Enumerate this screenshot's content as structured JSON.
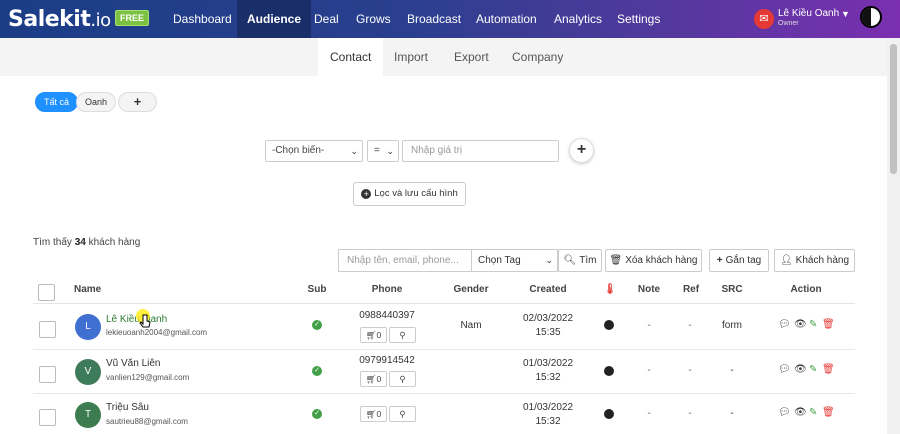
{
  "app": {
    "logo_main": "Salekit",
    "logo_suffix": ".io",
    "free_badge": "FREE"
  },
  "nav": {
    "items": [
      "Dashboard",
      "Audience",
      "Deal",
      "Grows",
      "Broadcast",
      "Automation",
      "Analytics",
      "Settings"
    ],
    "active": "Audience"
  },
  "user": {
    "name": "Lê Kiều Oanh",
    "role": "Owner",
    "caret": "▼"
  },
  "subtabs": {
    "items": [
      "Contact",
      "Import",
      "Export",
      "Company"
    ],
    "active": "Contact"
  },
  "chips": {
    "all": "Tất cả",
    "oanh": "Oanh",
    "add": "+"
  },
  "filter": {
    "field_select": "-Chọn biến-",
    "operator_select": "=",
    "value_placeholder": "Nhập giá trị",
    "add_button": "+",
    "save_button": "Lọc và lưu cấu hình"
  },
  "results": {
    "prefix": "Tìm thấy",
    "count": "34",
    "suffix": "khách hàng"
  },
  "toolbar": {
    "search_placeholder": "Nhập tên, email, phone...",
    "tag_select": "Chọn Tag",
    "search_button": "Tìm",
    "delete_button": "Xóa khách hàng",
    "tag_button": "Gắn tag",
    "customer_button": "Khách hàng"
  },
  "table": {
    "headers": {
      "name": "Name",
      "sub": "Sub",
      "phone": "Phone",
      "gender": "Gender",
      "created": "Created",
      "temp_icon": "thermometer-icon",
      "note": "Note",
      "ref": "Ref",
      "src": "SRC",
      "action": "Action"
    },
    "rows": [
      {
        "initial": "L",
        "avatar_color": "#3f6fd1",
        "name": "Lê Kiều Oanh",
        "email": "lekieuoanh2004@gmail.com",
        "phone": "0988440397",
        "cart": "0",
        "gender": "Nam",
        "date": "02/03/2022",
        "time": "15:35",
        "note": "-",
        "ref": "-",
        "src": "form"
      },
      {
        "initial": "V",
        "avatar_color": "#3d7b5a",
        "name": "Vũ Văn Liên",
        "email": "vanlien129@gmail.com",
        "phone": "0979914542",
        "cart": "0",
        "gender": "",
        "date": "01/03/2022",
        "time": "15:32",
        "note": "-",
        "ref": "-",
        "src": "-"
      },
      {
        "initial": "T",
        "avatar_color": "#3d7b50",
        "name": "Triệu Sâu",
        "email": "sautrieu88@gmail.com",
        "phone": "",
        "cart": "0",
        "gender": "",
        "date": "01/03/2022",
        "time": "15:32",
        "note": "-",
        "ref": "-",
        "src": "-"
      }
    ]
  },
  "colors": {
    "nav_start": "#1b3d86",
    "nav_end": "#7a2fb0",
    "accent": "#1e90ff",
    "success": "#43a047",
    "danger": "#e53935"
  }
}
